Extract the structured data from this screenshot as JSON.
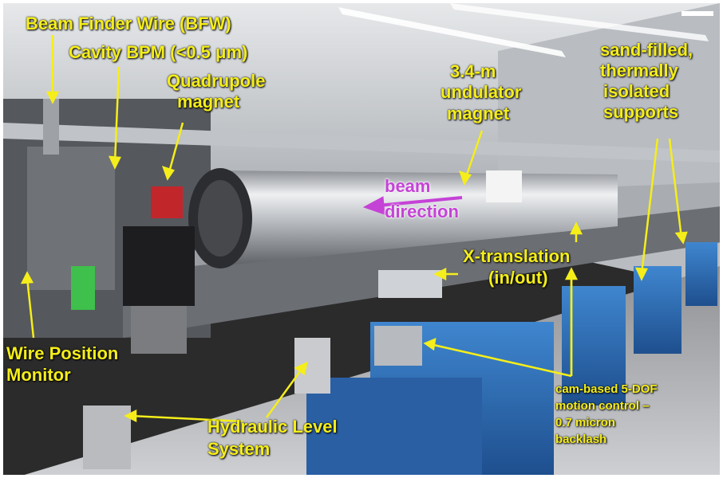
{
  "colors": {
    "label": "#f5ee1a",
    "beam_arrow": "#c542d6",
    "undulator_steel": "#c9ccd1",
    "support_blue": "#2f6fb8",
    "ceiling": "#d7d9dc"
  },
  "labels": {
    "bfw": "Beam Finder Wire (BFW)",
    "cavity_bpm": "Cavity BPM (<0.5 μm)",
    "quad_line1": "Quadrupole",
    "quad_line2": "magnet",
    "undulator_line1": "3.4-m",
    "undulator_line2": "undulator",
    "undulator_line3": "magnet",
    "supports_line1": "sand-filled,",
    "supports_line2": "thermally",
    "supports_line3": "isolated",
    "supports_line4": "supports",
    "beam_line1": "beam",
    "beam_line2": "direction",
    "xtrans_line1": "X-translation",
    "xtrans_line2": "(in/out)",
    "wpm_line1": "Wire Position",
    "wpm_line2": "Monitor",
    "hls_line1": "Hydraulic Level",
    "hls_line2": "System",
    "cam_line1": "cam-based 5-DOF",
    "cam_line2": "motion control –",
    "cam_line3": "0.7 micron",
    "cam_line4": "backlash"
  }
}
